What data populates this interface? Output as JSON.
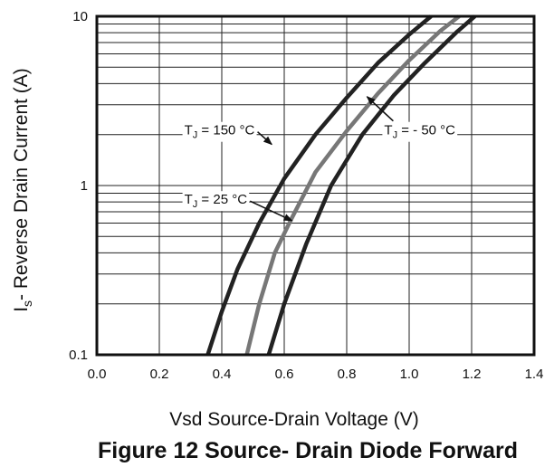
{
  "chart_data": {
    "type": "line",
    "title": "Figure 12 Source- Drain Diode Forward",
    "xlabel": "Vsd Source-Drain Voltage (V)",
    "ylabel_main": "I",
    "ylabel_sub": "s",
    "ylabel_rest": "- Reverse Drain Current (A)",
    "xlim": [
      0.0,
      1.4
    ],
    "ylim": [
      0.1,
      10
    ],
    "yscale": "log",
    "grid": true,
    "x_ticks": [
      "0.0",
      "0.2",
      "0.4",
      "0.6",
      "0.8",
      "1.0",
      "1.2",
      "1.4"
    ],
    "y_ticks": [
      {
        "value": 0.1,
        "label": "0.1"
      },
      {
        "value": 1,
        "label": "1"
      },
      {
        "value": 10,
        "label": "10"
      }
    ],
    "series": [
      {
        "label_main": "T",
        "label_sub": "J",
        "label_rest": " = 150 °C",
        "color": "#222222",
        "points": [
          [
            0.355,
            0.1
          ],
          [
            0.4,
            0.18
          ],
          [
            0.45,
            0.32
          ],
          [
            0.52,
            0.6
          ],
          [
            0.6,
            1.1
          ],
          [
            0.7,
            2.0
          ],
          [
            0.8,
            3.3
          ],
          [
            0.9,
            5.3
          ],
          [
            1.0,
            7.8
          ],
          [
            1.07,
            10
          ]
        ]
      },
      {
        "label_main": "T",
        "label_sub": "J",
        "label_rest": " = 25 °C",
        "color": "#777777",
        "points": [
          [
            0.48,
            0.1
          ],
          [
            0.52,
            0.2
          ],
          [
            0.57,
            0.4
          ],
          [
            0.62,
            0.62
          ],
          [
            0.7,
            1.2
          ],
          [
            0.8,
            2.1
          ],
          [
            0.9,
            3.5
          ],
          [
            1.0,
            5.5
          ],
          [
            1.1,
            8.2
          ],
          [
            1.16,
            10
          ]
        ]
      },
      {
        "label_main": "T",
        "label_sub": "J",
        "label_rest": " = - 50 °C",
        "color": "#222222",
        "points": [
          [
            0.55,
            0.1
          ],
          [
            0.6,
            0.2
          ],
          [
            0.67,
            0.45
          ],
          [
            0.75,
            1.0
          ],
          [
            0.85,
            2.0
          ],
          [
            0.95,
            3.4
          ],
          [
            1.05,
            5.3
          ],
          [
            1.15,
            8.0
          ],
          [
            1.21,
            10
          ]
        ]
      }
    ],
    "annotations": [
      {
        "series": 0,
        "text_x": 0.28,
        "text_y": 2.0,
        "arrow_to": [
          0.56,
          1.75
        ]
      },
      {
        "series": 1,
        "text_x": 0.28,
        "text_y": 0.78,
        "arrow_to": [
          0.625,
          0.62
        ]
      },
      {
        "series": 2,
        "text_x": 0.92,
        "text_y": 2.0,
        "arrow_to": [
          0.865,
          3.35
        ]
      }
    ]
  }
}
